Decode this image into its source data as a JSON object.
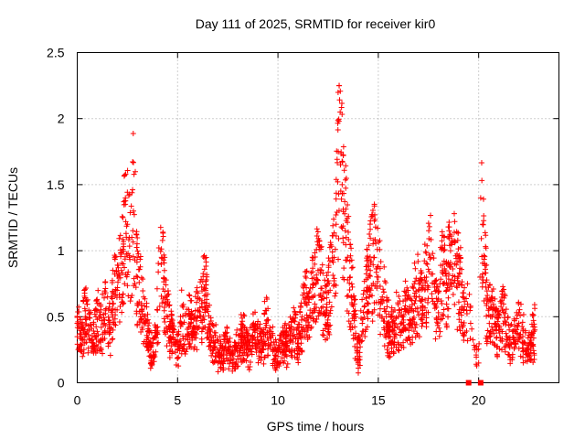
{
  "chart_data": {
    "type": "scatter",
    "title": "Day 111 of 2025, SRMTID for receiver kir0",
    "xlabel": "GPS time / hours",
    "ylabel": "SRMTID / TECUs",
    "xlim": [
      0,
      24
    ],
    "ylim": [
      0,
      2.5
    ],
    "xticks": [
      0,
      5,
      10,
      15,
      20
    ],
    "xtick_labels": [
      "0",
      "5",
      "10",
      "15",
      "20"
    ],
    "yticks": [
      0,
      0.5,
      1,
      1.5,
      2,
      2.5
    ],
    "ytick_labels": [
      "0",
      "0.5",
      "1",
      "1.5",
      "2",
      "2.5"
    ],
    "grid": true,
    "marker": "+",
    "series_color": "#ff0000",
    "outlier_color": "#ff0000",
    "series": [
      {
        "name": "SRMTID",
        "x": [
          0.0,
          0.2,
          0.4,
          0.6,
          0.8,
          1.0,
          1.2,
          1.4,
          1.6,
          1.8,
          2.0,
          2.2,
          2.3,
          2.4,
          2.5,
          2.6,
          2.8,
          3.0,
          3.2,
          3.4,
          3.6,
          3.8,
          4.0,
          4.2,
          4.4,
          4.6,
          4.8,
          5.0,
          5.2,
          5.4,
          5.6,
          5.8,
          6.0,
          6.2,
          6.4,
          6.6,
          6.8,
          7.0,
          7.2,
          7.4,
          7.6,
          7.8,
          8.0,
          8.2,
          8.4,
          8.6,
          8.8,
          9.0,
          9.2,
          9.4,
          9.6,
          9.8,
          10.0,
          10.2,
          10.4,
          10.6,
          10.8,
          11.0,
          11.2,
          11.4,
          11.6,
          11.8,
          12.0,
          12.2,
          12.4,
          12.6,
          12.8,
          12.9,
          13.0,
          13.1,
          13.2,
          13.4,
          13.6,
          13.8,
          14.0,
          14.2,
          14.4,
          14.6,
          14.8,
          15.0,
          15.2,
          15.4,
          15.6,
          15.8,
          16.0,
          16.2,
          16.4,
          16.6,
          16.8,
          17.0,
          17.2,
          17.4,
          17.6,
          17.8,
          18.0,
          18.2,
          18.4,
          18.6,
          18.8,
          19.0,
          19.2,
          19.4,
          19.6,
          19.8,
          20.0,
          20.1,
          20.2,
          20.3,
          20.4,
          20.6,
          20.8,
          21.0,
          21.2,
          21.4,
          21.6,
          21.8,
          22.0,
          22.2,
          22.4,
          22.6,
          22.8
        ],
        "y": [
          0.45,
          0.35,
          0.5,
          0.4,
          0.3,
          0.48,
          0.42,
          0.55,
          0.38,
          0.6,
          0.72,
          0.85,
          1.05,
          1.4,
          1.2,
          0.95,
          1.3,
          0.8,
          0.6,
          0.45,
          0.3,
          0.2,
          0.55,
          0.95,
          0.6,
          0.4,
          0.3,
          0.25,
          0.45,
          0.35,
          0.5,
          0.42,
          0.55,
          0.6,
          0.7,
          0.4,
          0.3,
          0.25,
          0.2,
          0.3,
          0.22,
          0.18,
          0.28,
          0.35,
          0.3,
          0.25,
          0.4,
          0.32,
          0.28,
          0.45,
          0.35,
          0.25,
          0.2,
          0.3,
          0.28,
          0.35,
          0.4,
          0.3,
          0.5,
          0.6,
          0.55,
          0.75,
          0.85,
          0.65,
          0.55,
          0.7,
          0.95,
          1.2,
          1.75,
          2.05,
          1.5,
          1.1,
          0.8,
          0.5,
          0.2,
          0.45,
          0.7,
          0.85,
          0.95,
          0.8,
          0.65,
          0.5,
          0.35,
          0.45,
          0.5,
          0.4,
          0.55,
          0.45,
          0.6,
          0.7,
          0.55,
          0.8,
          0.95,
          0.6,
          0.5,
          0.85,
          0.7,
          1.0,
          0.9,
          0.75,
          0.65,
          0.55,
          0.45,
          0.25,
          0.15,
          1.4,
          1.2,
          0.9,
          0.6,
          0.5,
          0.45,
          0.4,
          0.55,
          0.35,
          0.3,
          0.4,
          0.45,
          0.35,
          0.25,
          0.3,
          0.4
        ]
      }
    ]
  }
}
